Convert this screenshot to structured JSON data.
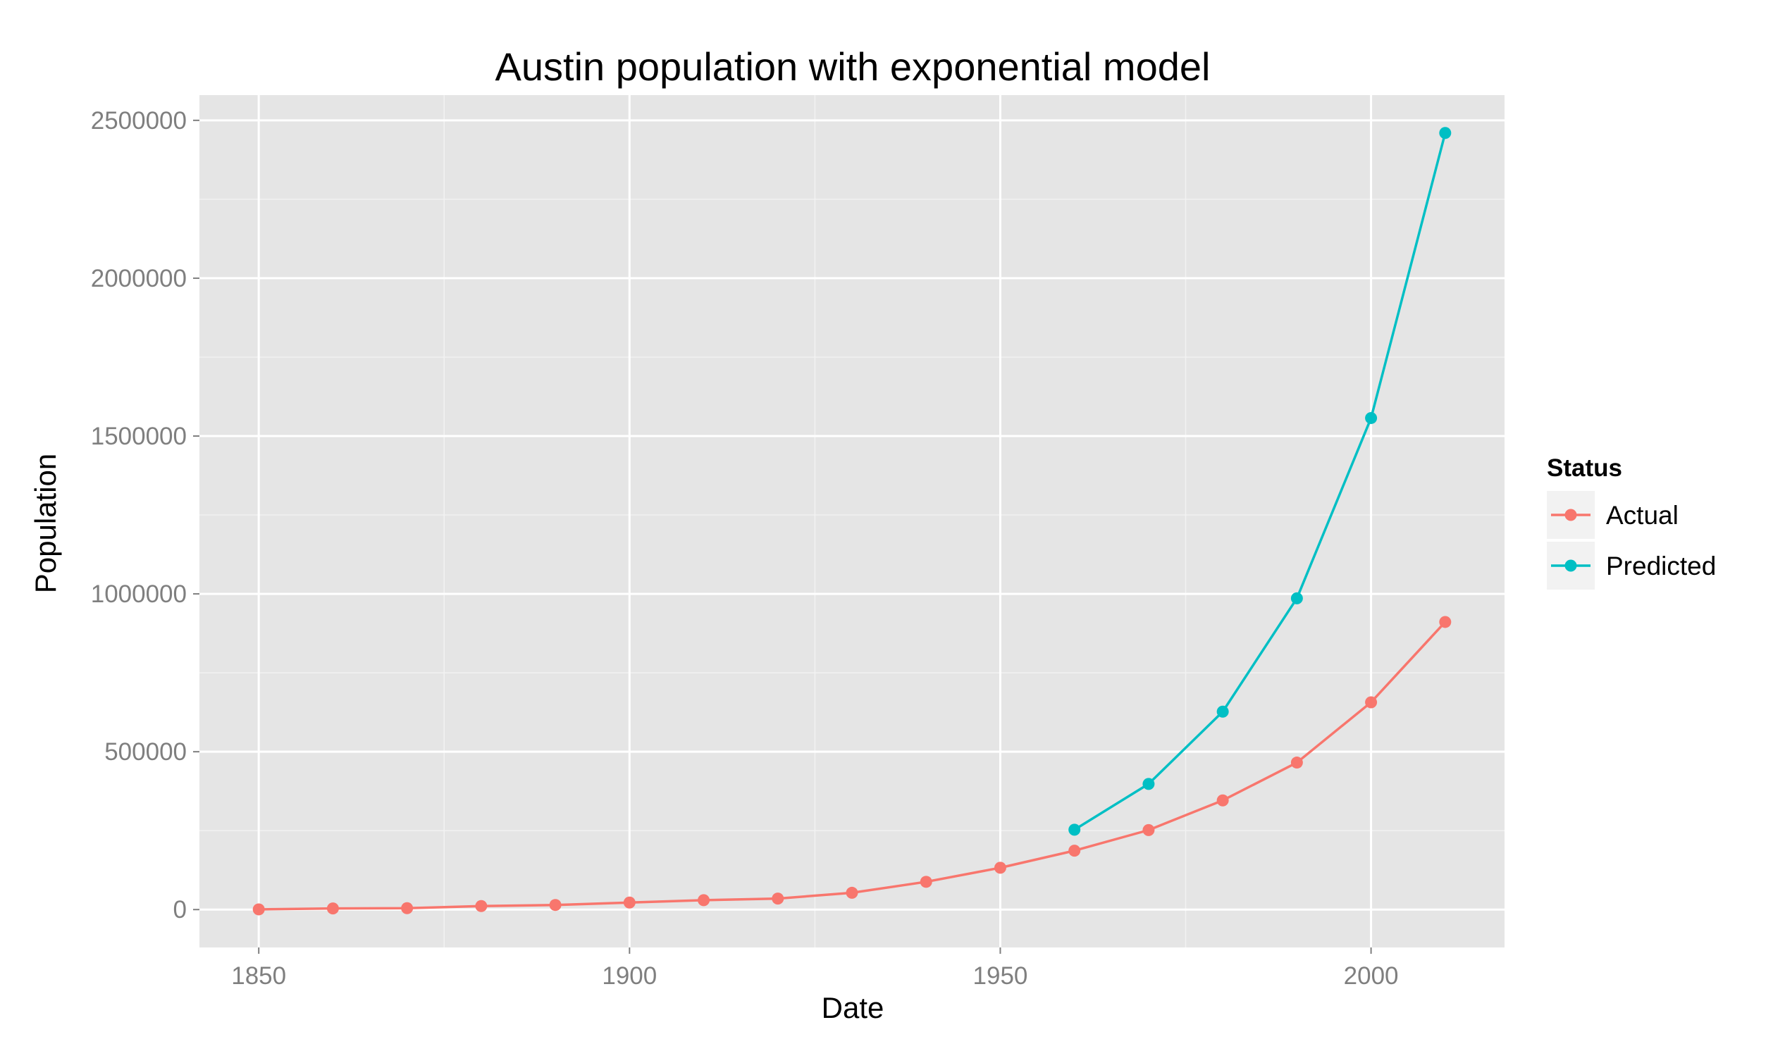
{
  "chart_data": {
    "type": "line",
    "title": "Austin population with exponential model",
    "xlabel": "Date",
    "ylabel": "Population",
    "xlim": [
      1842,
      2018
    ],
    "ylim": [
      -120000,
      2580000
    ],
    "x_ticks": [
      1850,
      1900,
      1950,
      2000
    ],
    "y_ticks": [
      0,
      500000,
      1000000,
      1500000,
      2000000,
      2500000
    ],
    "grid": true,
    "legend": {
      "title": "Status",
      "placement": "right"
    },
    "series": [
      {
        "name": "Actual",
        "color": "#F8766D",
        "x": [
          1850,
          1860,
          1870,
          1880,
          1890,
          1900,
          1910,
          1920,
          1930,
          1940,
          1950,
          1960,
          1970,
          1980,
          1990,
          2000,
          2010
        ],
        "y": [
          629,
          3494,
          4428,
          11013,
          14575,
          22258,
          29860,
          34876,
          53120,
          87930,
          132459,
          186545,
          251808,
          345890,
          465622,
          656562,
          911000
        ]
      },
      {
        "name": "Predicted",
        "color": "#00BFC4",
        "x": [
          1960,
          1970,
          1980,
          1990,
          2000,
          2010
        ],
        "y": [
          253000,
          398000,
          627000,
          986000,
          1557000,
          2460000
        ]
      }
    ]
  }
}
